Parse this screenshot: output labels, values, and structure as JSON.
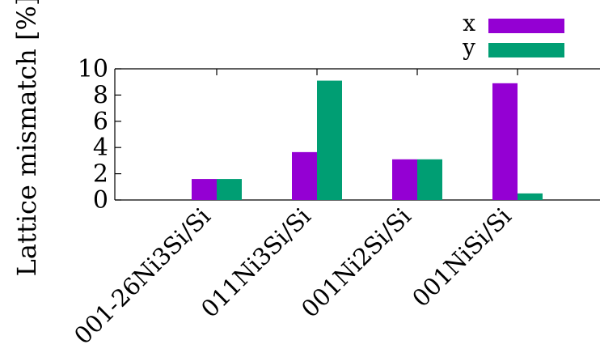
{
  "chart_data": {
    "type": "bar",
    "ylabel": "Lattice mismatch [%]",
    "xlabel": "",
    "title": "",
    "categories": [
      "001-26Ni3Si/Si",
      "011Ni3Si/Si",
      "001Ni2Si/Si",
      "001NiSi/Si"
    ],
    "series": [
      {
        "name": "x",
        "values": [
          1.6,
          3.65,
          3.1,
          8.9
        ],
        "color": "#9400d3"
      },
      {
        "name": "y",
        "values": [
          1.6,
          9.1,
          3.1,
          0.5
        ],
        "color": "#009e73"
      }
    ],
    "ylim": [
      0,
      10
    ],
    "yticks": [
      "0",
      "2",
      "4",
      "6",
      "8",
      "10"
    ],
    "grid": false,
    "legend_position": "top-right"
  }
}
